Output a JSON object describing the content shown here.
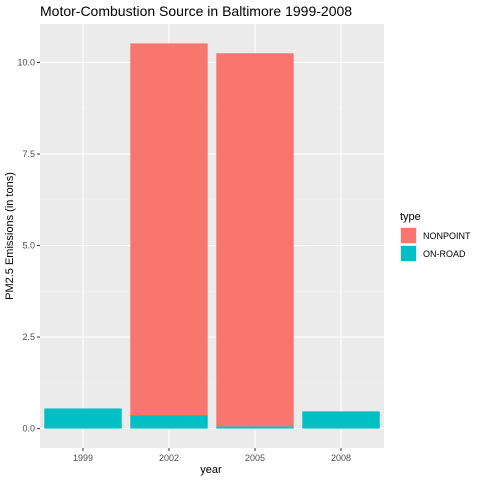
{
  "colors": {
    "NONPOINT": "#F8766D",
    "ON-ROAD": "#00BFC4",
    "panel": "#EBEBEB",
    "grid_major": "#FFFFFF",
    "grid_minor": "#F2F2F2"
  },
  "chart_data": {
    "type": "bar",
    "stacked": true,
    "title": "Motor-Combustion Source in Baltimore 1999-2008",
    "xlabel": "year",
    "ylabel": "PM2.5 Emissions (in tons)",
    "categories": [
      "1999",
      "2002",
      "2005",
      "2008"
    ],
    "series": [
      {
        "name": "ON-ROAD",
        "values": [
          0.55,
          0.37,
          0.06,
          0.47
        ]
      },
      {
        "name": "NONPOINT",
        "values": [
          0,
          10.15,
          10.19,
          0
        ]
      }
    ],
    "ylim": [
      -0.53,
      11.05
    ],
    "yticks": [
      0,
      2.5,
      5,
      7.5,
      10
    ],
    "ytick_labels": [
      "0.0",
      "2.5",
      "5.0",
      "7.5",
      "10.0"
    ],
    "grid": true,
    "legend": {
      "title": "type",
      "position": "right",
      "entries": [
        "NONPOINT",
        "ON-ROAD"
      ]
    }
  }
}
